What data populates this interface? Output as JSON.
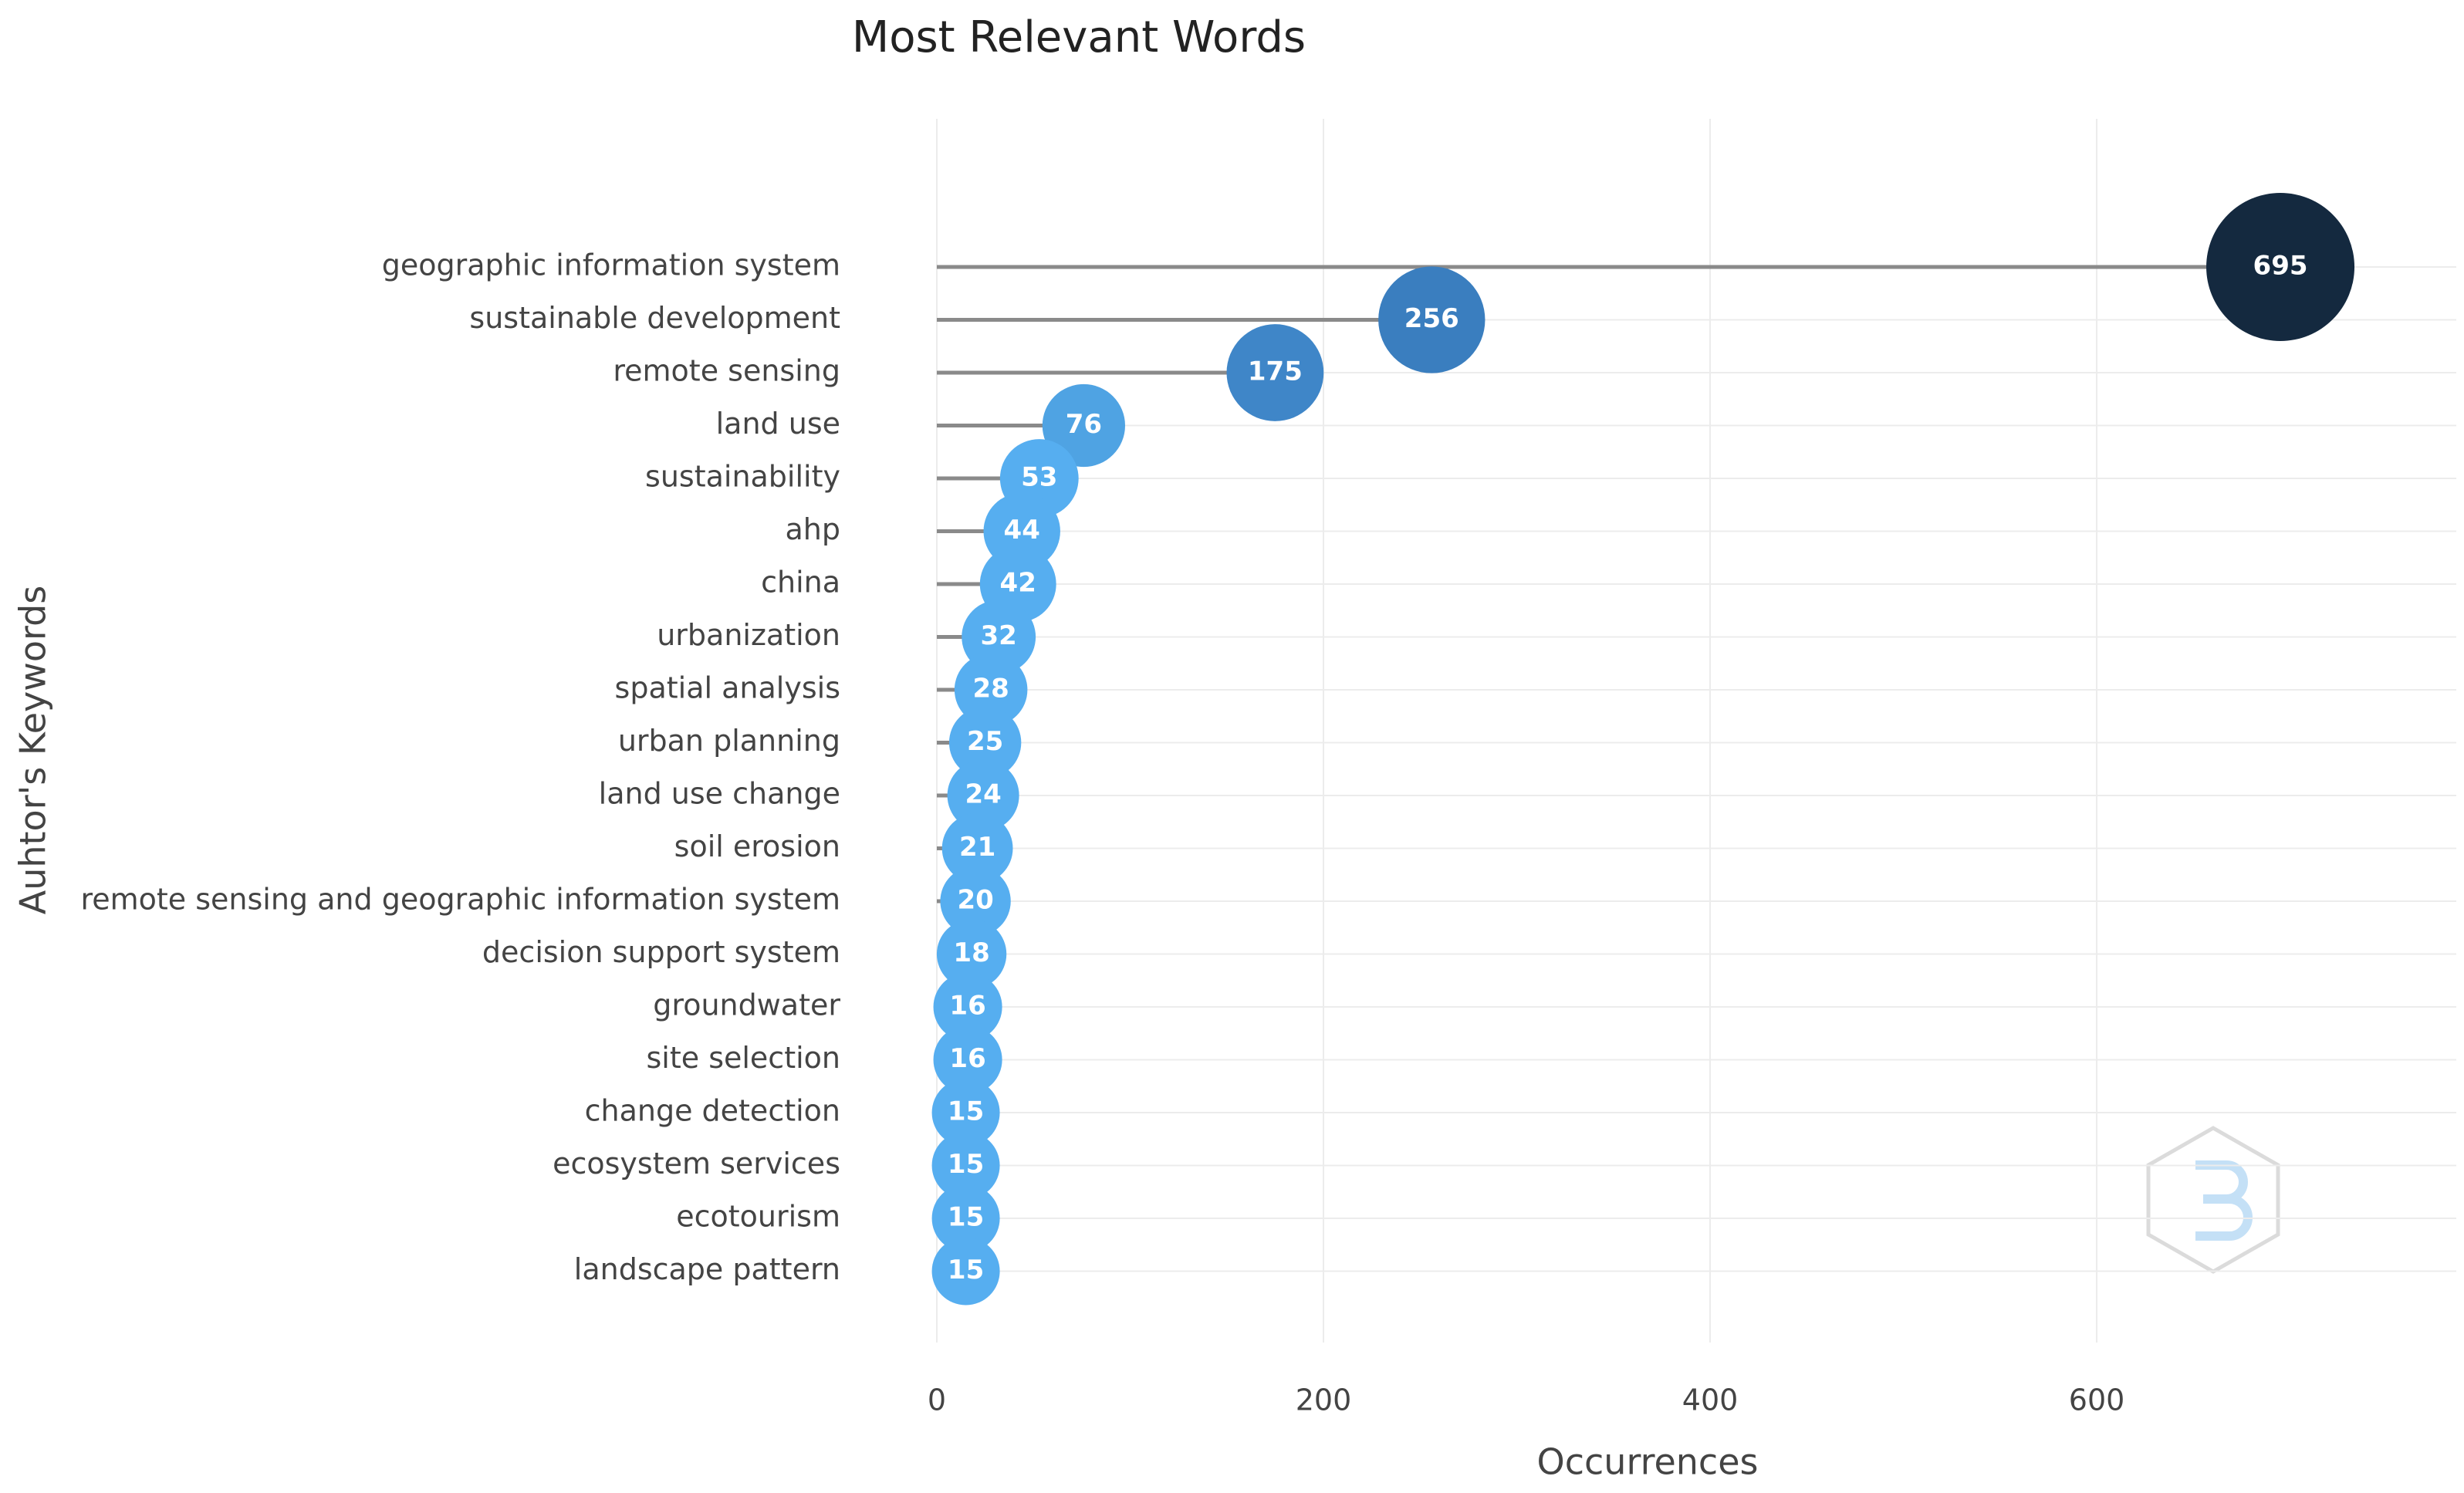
{
  "chart_data": {
    "type": "lollipop",
    "title": "Most Relevant Words",
    "x_label": "Occurrences",
    "y_label": "Auhtor's Keywords",
    "categories": [
      "geographic information system",
      "sustainable development",
      "remote sensing",
      "land use",
      "sustainability",
      "ahp",
      "china",
      "urbanization",
      "spatial analysis",
      "urban planning",
      "land use change",
      "soil erosion",
      "remote sensing and geographic information system",
      "decision support system",
      "groundwater",
      "site selection",
      "change detection",
      "ecosystem services",
      "ecotourism",
      "landscape pattern"
    ],
    "values": [
      695,
      256,
      175,
      76,
      53,
      44,
      42,
      32,
      28,
      25,
      24,
      21,
      20,
      18,
      16,
      16,
      15,
      15,
      15,
      15
    ],
    "colors": [
      "#14293f",
      "#3a7ebf",
      "#3f86c8",
      "#4fa3e3",
      "#56aef0",
      "#56aef0",
      "#56aef0",
      "#56aef0",
      "#56aef0",
      "#56aef0",
      "#56aef0",
      "#56aef0",
      "#56aef0",
      "#56aef0",
      "#56aef0",
      "#56aef0",
      "#56aef0",
      "#56aef0",
      "#56aef0",
      "#56aef0"
    ],
    "stem_color": "#8a8a8a",
    "xlim": [
      0,
      786
    ],
    "xticks": [
      0,
      200,
      400,
      600
    ],
    "grid": true
  }
}
